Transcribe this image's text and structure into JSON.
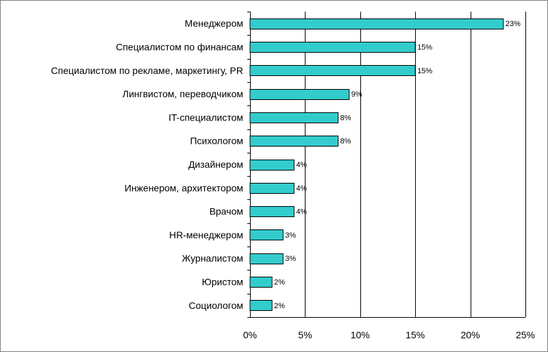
{
  "chart_data": {
    "type": "bar",
    "orientation": "horizontal",
    "categories": [
      "Менеджером",
      "Специалистом по финансам",
      "Специалистом по рекламе, маркетингу, PR",
      "Лингвистом, переводчиком",
      "IT-специалистом",
      "Психологом",
      "Дизайнером",
      "Инженером, архитектором",
      "Врачом",
      "HR-менеджером",
      "Журналистом",
      "Юристом",
      "Социологом"
    ],
    "values": [
      23,
      15,
      15,
      9,
      8,
      8,
      4,
      4,
      4,
      3,
      3,
      2,
      2
    ],
    "data_labels": [
      "23%",
      "15%",
      "15%",
      "9%",
      "8%",
      "8%",
      "4%",
      "4%",
      "4%",
      "3%",
      "3%",
      "2%",
      "2%"
    ],
    "xlim": [
      0,
      25
    ],
    "xticks": [
      0,
      5,
      10,
      15,
      20,
      25
    ],
    "xtick_labels": [
      "0%",
      "5%",
      "10%",
      "15%",
      "20%",
      "25%"
    ],
    "grid": "vertical",
    "legend": "none",
    "title": "",
    "xlabel": "",
    "ylabel": "",
    "bar_color": "#33cccc"
  }
}
